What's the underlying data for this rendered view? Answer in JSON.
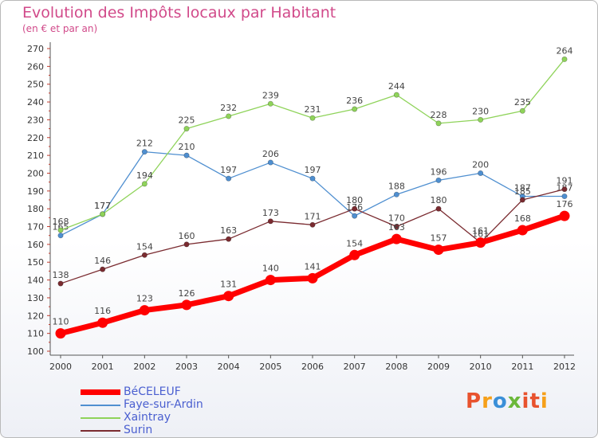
{
  "title": "Evolution des Impôts locaux par Habitant",
  "subtitle": "(en € et par an)",
  "logo": "Proxiti",
  "chart_data": {
    "type": "line",
    "x": [
      "2000",
      "2001",
      "2002",
      "2003",
      "2004",
      "2005",
      "2006",
      "2007",
      "2008",
      "2009",
      "2010",
      "2011",
      "2012"
    ],
    "yticks": [
      100,
      110,
      120,
      130,
      140,
      150,
      160,
      170,
      180,
      190,
      200,
      210,
      220,
      230,
      240,
      250,
      260,
      270
    ],
    "ylim": [
      100,
      270
    ],
    "grid": false,
    "legend_position": "bottom-left",
    "series": [
      {
        "name": "BéCELEUF",
        "color": "#ff0000",
        "width": 7,
        "values": [
          110,
          116,
          123,
          126,
          131,
          140,
          141,
          154,
          163,
          157,
          161,
          168,
          176
        ]
      },
      {
        "name": "Faye-sur-Ardin",
        "color": "#4f8fd0",
        "width": 1.3,
        "values": [
          165,
          177,
          212,
          210,
          197,
          206,
          197,
          176,
          188,
          196,
          200,
          187,
          187
        ]
      },
      {
        "name": "Xaintray",
        "color": "#8fd35a",
        "width": 1.3,
        "values": [
          168,
          177,
          194,
          225,
          232,
          239,
          231,
          236,
          244,
          228,
          230,
          235,
          264
        ]
      },
      {
        "name": "Surin",
        "color": "#7a2b30",
        "width": 1.3,
        "values": [
          138,
          146,
          154,
          160,
          163,
          173,
          171,
          180,
          170,
          180,
          161,
          185,
          191
        ]
      }
    ]
  }
}
